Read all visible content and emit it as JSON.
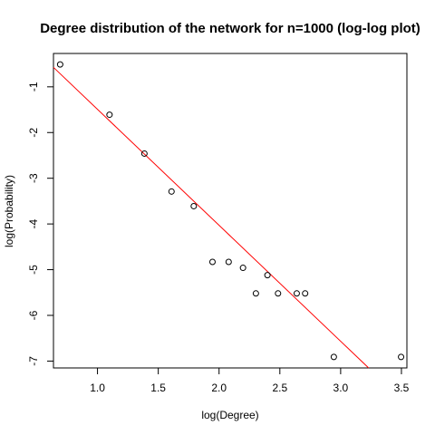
{
  "chart_data": {
    "type": "scatter",
    "title": "Degree distribution of the network for n=1000 (log-log plot)",
    "xlabel": "log(Degree)",
    "ylabel": "log(Probability)",
    "xlim": [
      0.638,
      3.545
    ],
    "ylim": [
      -7.15,
      -0.27
    ],
    "xticks": [
      1.0,
      1.5,
      2.0,
      2.5,
      3.0,
      3.5
    ],
    "xtick_labels": [
      "1.0",
      "1.5",
      "2.0",
      "2.5",
      "3.0",
      "3.5"
    ],
    "yticks": [
      -1,
      -2,
      -3,
      -4,
      -5,
      -6,
      -7
    ],
    "ytick_labels": [
      "-1",
      "-2",
      "-3",
      "-4",
      "-5",
      "-6",
      "-7"
    ],
    "grid": false,
    "legend": "none",
    "points": [
      {
        "x": 0.693,
        "y": -0.51
      },
      {
        "x": 1.099,
        "y": -1.61
      },
      {
        "x": 1.386,
        "y": -2.46
      },
      {
        "x": 1.609,
        "y": -3.29
      },
      {
        "x": 1.792,
        "y": -3.61
      },
      {
        "x": 1.946,
        "y": -4.83
      },
      {
        "x": 2.079,
        "y": -4.83
      },
      {
        "x": 2.197,
        "y": -4.96
      },
      {
        "x": 2.303,
        "y": -5.52
      },
      {
        "x": 2.398,
        "y": -5.12
      },
      {
        "x": 2.485,
        "y": -5.52
      },
      {
        "x": 2.639,
        "y": -5.52
      },
      {
        "x": 2.708,
        "y": -5.52
      },
      {
        "x": 2.944,
        "y": -6.91
      },
      {
        "x": 3.497,
        "y": -6.91
      }
    ],
    "fit_line": {
      "intercept": 1.045,
      "slope": -2.537,
      "color": "#ff0000"
    },
    "point_color": "#000000"
  }
}
